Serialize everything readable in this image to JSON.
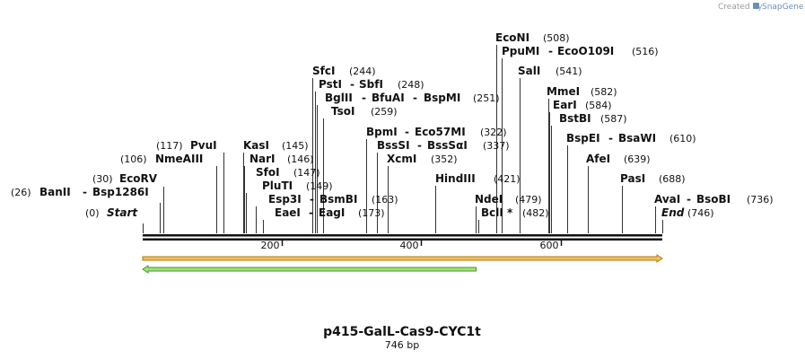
{
  "credit": {
    "prefix": "Created by",
    "brand": "SnapGene"
  },
  "plasmid": {
    "name": "p415-GalL-Cas9-CYC1t",
    "length_label": "746 bp",
    "length": 746
  },
  "axis": {
    "ticks": [
      200,
      400,
      600
    ]
  },
  "features": [
    {
      "name": "orange-feature-arrow",
      "start": 1,
      "end": 746,
      "direction": "forward",
      "color": "#f0c060",
      "stroke": "#b07a10"
    },
    {
      "name": "green-feature-arrow",
      "start": 1,
      "end": 479,
      "direction": "reverse",
      "color": "#a6e07a",
      "stroke": "#3d9a2a"
    }
  ],
  "sites": [
    {
      "name": "Start",
      "pos": "(0)",
      "bp": 1,
      "italic": true
    },
    {
      "name": "BanII",
      "alt": "Bsp1286I",
      "pos": "(26)",
      "bp": 26
    },
    {
      "name": "EcoRV",
      "pos": "(30)",
      "bp": 30
    },
    {
      "name": "NmeAIII",
      "pos": "(106)",
      "bp": 106
    },
    {
      "name": "PvuI",
      "pos": "(117)",
      "bp": 117
    },
    {
      "name": "KasI",
      "pos": "(145)",
      "bp": 145
    },
    {
      "name": "NarI",
      "pos": "(146)",
      "bp": 146
    },
    {
      "name": "SfoI",
      "pos": "(147)",
      "bp": 147
    },
    {
      "name": "PluTI",
      "pos": "(149)",
      "bp": 149
    },
    {
      "name": "Esp3I",
      "alt": "BsmBI",
      "pos": "(163)",
      "bp": 163
    },
    {
      "name": "EaeI",
      "alt": "EagI",
      "pos": "(173)",
      "bp": 173
    },
    {
      "name": "SfcI",
      "pos": "(244)",
      "bp": 244
    },
    {
      "name": "PstI",
      "alt": "SbfI",
      "pos": "(248)",
      "bp": 248
    },
    {
      "name": "BglII",
      "alt": "BfuAI",
      "alt2": "BspMI",
      "pos": "(251)",
      "bp": 251
    },
    {
      "name": "TsoI",
      "pos": "(259)",
      "bp": 259
    },
    {
      "name": "BpmI",
      "alt": "Eco57MI",
      "pos": "(322)",
      "bp": 322
    },
    {
      "name": "BssSI",
      "alt": "BssSαI",
      "pos": "(337)",
      "bp": 337
    },
    {
      "name": "XcmI",
      "pos": "(352)",
      "bp": 352
    },
    {
      "name": "HindIII",
      "pos": "(421)",
      "bp": 421
    },
    {
      "name": "NdeI",
      "pos": "(479)",
      "bp": 479
    },
    {
      "name": "BclI *",
      "pos": "(482)",
      "bp": 482
    },
    {
      "name": "EcoNI",
      "pos": "(508)",
      "bp": 508
    },
    {
      "name": "PpuMI",
      "alt": "EcoO109I",
      "pos": "(516)",
      "bp": 516
    },
    {
      "name": "SalI",
      "pos": "(541)",
      "bp": 541
    },
    {
      "name": "MmeI",
      "pos": "(582)",
      "bp": 582
    },
    {
      "name": "EarI",
      "pos": "(584)",
      "bp": 584
    },
    {
      "name": "BstBI",
      "pos": "(587)",
      "bp": 587
    },
    {
      "name": "BspEI",
      "alt": "BsaWI",
      "pos": "(610)",
      "bp": 610
    },
    {
      "name": "AfeI",
      "pos": "(639)",
      "bp": 639
    },
    {
      "name": "PasI",
      "pos": "(688)",
      "bp": 688
    },
    {
      "name": "AvaI",
      "alt": "BsoBI",
      "pos": "(736)",
      "bp": 736
    },
    {
      "name": "End",
      "pos": "(746)",
      "bp": 746,
      "italic": true
    }
  ]
}
